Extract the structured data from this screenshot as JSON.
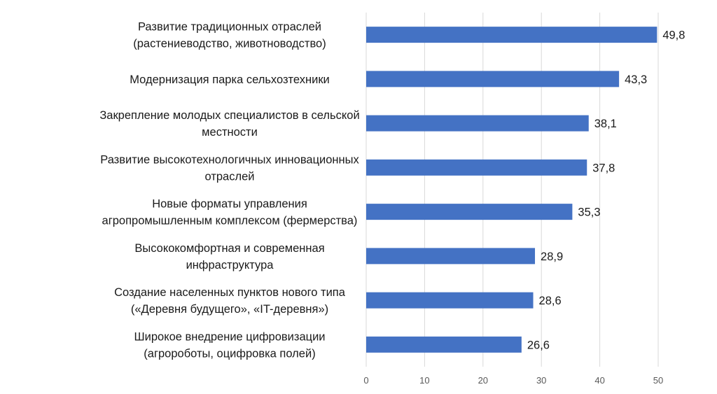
{
  "chart_data": {
    "type": "bar",
    "orientation": "horizontal",
    "title": "",
    "xlabel": "",
    "ylabel": "",
    "xlim": [
      0,
      50
    ],
    "grid": true,
    "legend": "none",
    "bar_color": "#4472C4",
    "decimal_separator": ",",
    "ticks": [
      "0",
      "10",
      "20",
      "30",
      "40",
      "50"
    ],
    "categories": [
      [
        "Развитие традиционных отраслей",
        "(растениеводство, животноводство)"
      ],
      [
        "Модернизация парка сельхозтехники"
      ],
      [
        "Закрепление молодых специалистов в сельской",
        "местности"
      ],
      [
        "Развитие высокотехнологичных инновационных",
        "отраслей"
      ],
      [
        "Новые форматы управления",
        "агропромышленным комплексом (фермерства)"
      ],
      [
        "Высококомфортная и современная",
        "инфраструктура"
      ],
      [
        "Создание населенных пунктов нового типа",
        "(«Деревня будущего», «IT-деревня»)"
      ],
      [
        "Широкое внедрение цифровизации",
        "(агророботы, оцифровка полей)"
      ]
    ],
    "values": [
      49.8,
      43.3,
      38.1,
      37.8,
      35.3,
      28.9,
      28.6,
      26.6
    ],
    "value_labels": [
      "49,8",
      "43,3",
      "38,1",
      "37,8",
      "35,3",
      "28,9",
      "28,6",
      "26,6"
    ]
  }
}
